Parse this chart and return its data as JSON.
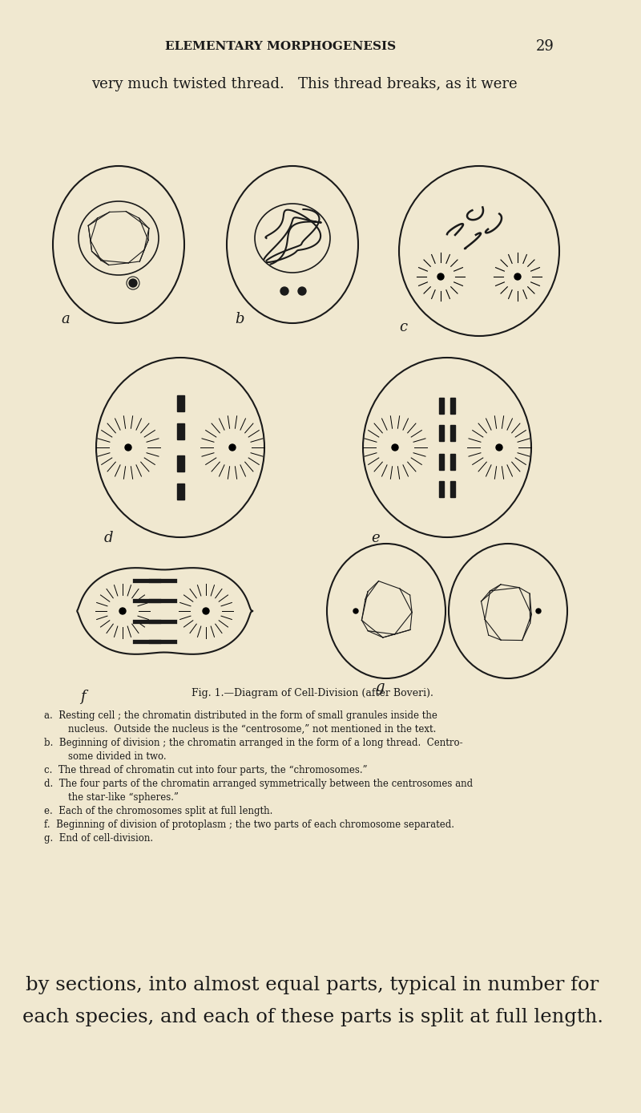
{
  "bg_color": "#f0e8d0",
  "text_color": "#1a1a1a",
  "title_text": "ELEMENTARY MORPHOGENESIS",
  "page_number": "29",
  "top_text": "very much twisted thread.   This thread breaks, as it were",
  "fig_caption": "Fig. 1.—Diagram of Cell-Division (after Boveri).",
  "caption_lines": [
    "a.  Resting cell ; the chromatin distributed in the form of small granules inside the",
    "        nucleus.  Outside the nucleus is the “centrosome,” not mentioned in the text.",
    "b.  Beginning of division ; the chromatin arranged in the form of a long thread.  Centro-",
    "        some divided in two.",
    "c.  The thread of chromatin cut into four parts, the “chromosomes.”",
    "d.  The four parts of the chromatin arranged symmetrically between the centrosomes and",
    "        the star-like “spheres.”",
    "e.  Each of the chromosomes split at full length.",
    "f.  Beginning of division of protoplasm ; the two parts of each chromosome separated.",
    "g.  End of cell-division."
  ],
  "bottom_text_line1": "by sections, into almost equal parts, typical in number for",
  "bottom_text_line2": "each species, and each of these parts is split at full length."
}
